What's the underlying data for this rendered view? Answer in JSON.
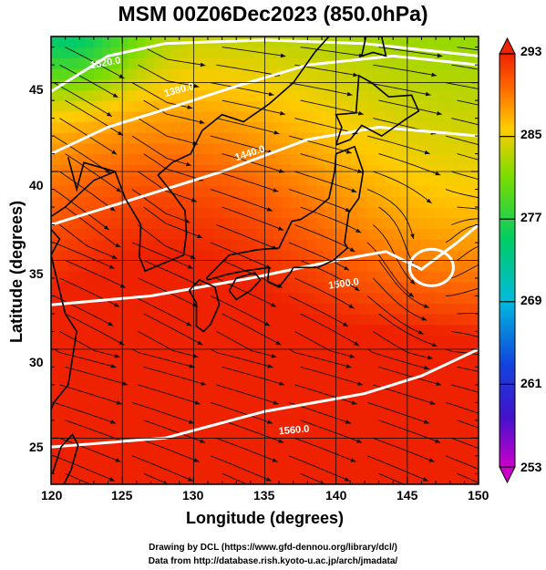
{
  "title": "MSM 00Z06Dec2023 (850.0hPa)",
  "xlabel": "Longitude (degrees)",
  "ylabel": "Latitude  (degrees)",
  "x_ticks": [
    "120",
    "125",
    "130",
    "135",
    "140",
    "145",
    "150"
  ],
  "y_ticks": [
    "45",
    "40",
    "35",
    "30",
    "25"
  ],
  "colorbar": {
    "ticks": [
      "293",
      "285",
      "277",
      "269",
      "261",
      "253"
    ],
    "min": 253,
    "max": 293,
    "unit_hint": "K"
  },
  "contour_labels": [
    "1320.0",
    "1380.0",
    "1440.0",
    "1500.0",
    "1560.0"
  ],
  "footer": {
    "line1": "Drawing by DCL (https://www.gfd-dennou.org/library/dcl/)",
    "line2": "Data from http://database.rish.kyoto-u.ac.jp/arch/jmadata/"
  },
  "chart_data": {
    "type": "heatmap",
    "description_fields": "temperature shading with geopotential height contours and wind streamlines",
    "xlim": [
      120,
      150
    ],
    "ylim": [
      22.4,
      47.6
    ],
    "colorbar_range": [
      253,
      293
    ],
    "colorbar_ticks": [
      253,
      261,
      269,
      277,
      285,
      293
    ],
    "colors": [
      "#cc00cc",
      "#2233cc",
      "#00bbdd",
      "#00cc66",
      "#66dd00",
      "#ffcc00",
      "#ff6600",
      "#ee2200"
    ]
  }
}
